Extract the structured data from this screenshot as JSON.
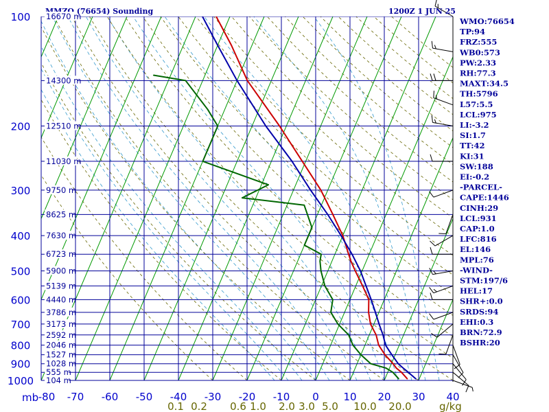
{
  "chart_data": {
    "type": "line",
    "title": "MMZO (76654) Sounding",
    "valid_time": "1200Z  1 JUN 25",
    "pressure_unit_label": "mb",
    "pressure_levels": [
      100,
      200,
      300,
      400,
      500,
      600,
      700,
      800,
      900,
      1000
    ],
    "pressure_tick_labels": [
      "100",
      "200",
      "300",
      "400",
      "500",
      "600",
      "700",
      "800",
      "900",
      "1000"
    ],
    "temp_ticks": [
      -80,
      -70,
      -60,
      -50,
      -40,
      -30,
      -20,
      -10,
      0,
      10,
      20,
      30,
      40
    ],
    "temp_tick_labels": [
      "-80",
      "-70",
      "-60",
      "-50",
      "-40",
      "-30",
      "-20",
      "-10",
      "0",
      "10",
      "20",
      "30",
      "40"
    ],
    "mixing_ratio_labels": [
      "0.1",
      "0.2",
      "0.6",
      "1.0",
      "2.0",
      "3.0",
      "5.0",
      "10.0",
      "20.0"
    ],
    "mixing_ratio_unit": "g/kg",
    "height_labels": [
      {
        "p": 100,
        "text": "16670 m"
      },
      {
        "p": 150,
        "text": "14300 m"
      },
      {
        "p": 200,
        "text": "12510 m"
      },
      {
        "p": 250,
        "text": "11030 m"
      },
      {
        "p": 300,
        "text": "9750 m"
      },
      {
        "p": 350,
        "text": "8625 m"
      },
      {
        "p": 400,
        "text": "7630 m"
      },
      {
        "p": 450,
        "text": "6723 m"
      },
      {
        "p": 500,
        "text": "5900 m"
      },
      {
        "p": 550,
        "text": "5139 m"
      },
      {
        "p": 600,
        "text": "4440 m"
      },
      {
        "p": 650,
        "text": "3786 m"
      },
      {
        "p": 700,
        "text": "3173 m"
      },
      {
        "p": 750,
        "text": "2592 m"
      },
      {
        "p": 800,
        "text": "2046 m"
      },
      {
        "p": 850,
        "text": "1527 m"
      },
      {
        "p": 900,
        "text": "1028 m"
      },
      {
        "p": 950,
        "text": "555 m"
      },
      {
        "p": 1000,
        "text": "104 m"
      }
    ],
    "series": [
      {
        "name": "temperature",
        "color": "#cc0000",
        "points": [
          [
            990,
            26.5
          ],
          [
            950,
            24
          ],
          [
            925,
            22
          ],
          [
            900,
            20.5
          ],
          [
            850,
            17
          ],
          [
            800,
            14
          ],
          [
            750,
            12
          ],
          [
            700,
            9
          ],
          [
            650,
            7
          ],
          [
            600,
            5.5
          ],
          [
            550,
            2
          ],
          [
            500,
            -2
          ],
          [
            470,
            -4.5
          ],
          [
            450,
            -6
          ],
          [
            400,
            -10
          ],
          [
            350,
            -15.5
          ],
          [
            300,
            -22
          ],
          [
            250,
            -31
          ],
          [
            200,
            -42
          ],
          [
            150,
            -57
          ],
          [
            120,
            -66
          ],
          [
            100,
            -74
          ]
        ]
      },
      {
        "name": "dewpoint",
        "color": "#006600",
        "points": [
          [
            990,
            24
          ],
          [
            950,
            21.5
          ],
          [
            925,
            19
          ],
          [
            900,
            14
          ],
          [
            850,
            10
          ],
          [
            800,
            6.5
          ],
          [
            750,
            4
          ],
          [
            700,
            -0.5
          ],
          [
            650,
            -4
          ],
          [
            600,
            -5
          ],
          [
            550,
            -9
          ],
          [
            500,
            -12
          ],
          [
            470,
            -13.5
          ],
          [
            450,
            -14
          ],
          [
            425,
            -20
          ],
          [
            380,
            -20
          ],
          [
            330,
            -25
          ],
          [
            315,
            -44
          ],
          [
            290,
            -38
          ],
          [
            250,
            -60
          ],
          [
            200,
            -60
          ],
          [
            180,
            -65
          ],
          [
            150,
            -75
          ],
          [
            145,
            -85
          ]
        ]
      },
      {
        "name": "parcel",
        "color": "#0000aa",
        "points": [
          [
            990,
            29
          ],
          [
            950,
            26
          ],
          [
            925,
            24
          ],
          [
            900,
            22
          ],
          [
            850,
            19
          ],
          [
            800,
            16
          ],
          [
            750,
            14
          ],
          [
            700,
            11.5
          ],
          [
            650,
            9
          ],
          [
            600,
            6.2
          ],
          [
            550,
            3
          ],
          [
            500,
            -0.5
          ],
          [
            450,
            -5
          ],
          [
            400,
            -10.5
          ],
          [
            350,
            -17
          ],
          [
            300,
            -25
          ],
          [
            250,
            -34
          ],
          [
            200,
            -46
          ],
          [
            150,
            -60
          ],
          [
            120,
            -70
          ],
          [
            100,
            -78
          ]
        ]
      }
    ],
    "indices": [
      "WMO:76654",
      "TP:94",
      "FRZ:555",
      "WB0:573",
      "PW:2.33",
      "RH:77.3",
      "MAXT:34.5",
      "TH:5796",
      "L57:5.5",
      "LCL:975",
      "LI:-3.2",
      "SI:1.7",
      "TT:42",
      "KI:31",
      "SW:188",
      "EI:-0.2",
      "-PARCEL-",
      "CAPE:1446",
      "CINH:29",
      "LCL:931",
      "CAP:1.0",
      "LFC:816",
      "EL:146",
      "MPL:76",
      "-WIND-",
      "STM:197/6",
      "HEL:17",
      "SHR+:0.0",
      "SRDS:94",
      "EHI:0.3",
      "BRN:72.9",
      "BSHR:20"
    ],
    "wind_barbs": [
      {
        "p": 1000,
        "dir": 110,
        "spd": 5
      },
      {
        "p": 950,
        "dir": 130,
        "spd": 10
      },
      {
        "p": 900,
        "dir": 140,
        "spd": 10
      },
      {
        "p": 850,
        "dir": 150,
        "spd": 10
      },
      {
        "p": 800,
        "dir": 160,
        "spd": 10
      },
      {
        "p": 750,
        "dir": 200,
        "spd": 10
      },
      {
        "p": 700,
        "dir": 230,
        "spd": 10
      },
      {
        "p": 650,
        "dir": 250,
        "spd": 10
      },
      {
        "p": 600,
        "dir": 270,
        "spd": 10
      },
      {
        "p": 550,
        "dir": 250,
        "spd": 15
      },
      {
        "p": 500,
        "dir": 260,
        "spd": 15
      },
      {
        "p": 450,
        "dir": 270,
        "spd": 10
      },
      {
        "p": 400,
        "dir": 240,
        "spd": 10
      },
      {
        "p": 350,
        "dir": 200,
        "spd": 10
      },
      {
        "p": 300,
        "dir": 250,
        "spd": 10
      },
      {
        "p": 250,
        "dir": 270,
        "spd": 10
      },
      {
        "p": 200,
        "dir": 280,
        "spd": 15
      },
      {
        "p": 175,
        "dir": 290,
        "spd": 15
      },
      {
        "p": 150,
        "dir": 270,
        "spd": 20
      },
      {
        "p": 125,
        "dir": 280,
        "spd": 15
      },
      {
        "p": 100,
        "dir": 300,
        "spd": 15
      }
    ],
    "colors": {
      "isobar": "#000099",
      "isotherm": "#009900",
      "dry_adiabat": "#666600",
      "moist_adiabat": "#3399cc",
      "temperature": "#cc0000",
      "dewpoint": "#006600",
      "parcel": "#0000aa",
      "axis_text_blue": "#0000cc",
      "axis_text_olive": "#666600",
      "title_text": "#000099"
    }
  }
}
